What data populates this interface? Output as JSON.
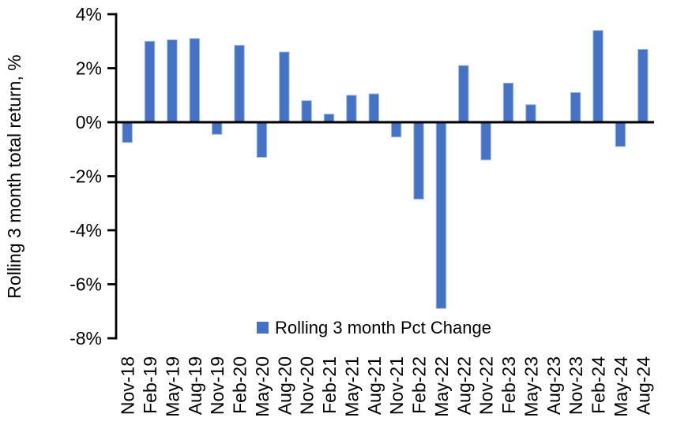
{
  "chart_data": {
    "type": "bar",
    "title": "",
    "xlabel": "",
    "ylabel": "Rolling 3 month total return, %",
    "legend_label": "Rolling 3 month Pct Change",
    "legend_position": "bottom-center",
    "ylim": [
      -8,
      4
    ],
    "ytick_step": 2,
    "ytick_suffix": "%",
    "grid": false,
    "categories": [
      "Nov-18",
      "Feb-19",
      "May-19",
      "Aug-19",
      "Nov-19",
      "Feb-20",
      "May-20",
      "Aug-20",
      "Nov-20",
      "Feb-21",
      "May-21",
      "Aug-21",
      "Nov-21",
      "Feb-22",
      "May-22",
      "Aug-22",
      "Nov-22",
      "Feb-23",
      "May-23",
      "Aug-23",
      "Nov-23",
      "Feb-24",
      "May-24",
      "Aug-24"
    ],
    "values": [
      -0.75,
      3.0,
      3.05,
      3.1,
      -0.45,
      2.85,
      -1.3,
      2.6,
      0.8,
      0.3,
      1.0,
      1.05,
      -0.55,
      -2.85,
      -6.9,
      2.1,
      -1.4,
      1.45,
      0.65,
      0.0,
      1.1,
      3.4,
      -0.9,
      2.7
    ],
    "colors": {
      "bar": "#4472C4",
      "bar_edge": "#A8BEE5",
      "axis": "#000000",
      "text": "#000000",
      "background": "#FFFFFF"
    }
  }
}
